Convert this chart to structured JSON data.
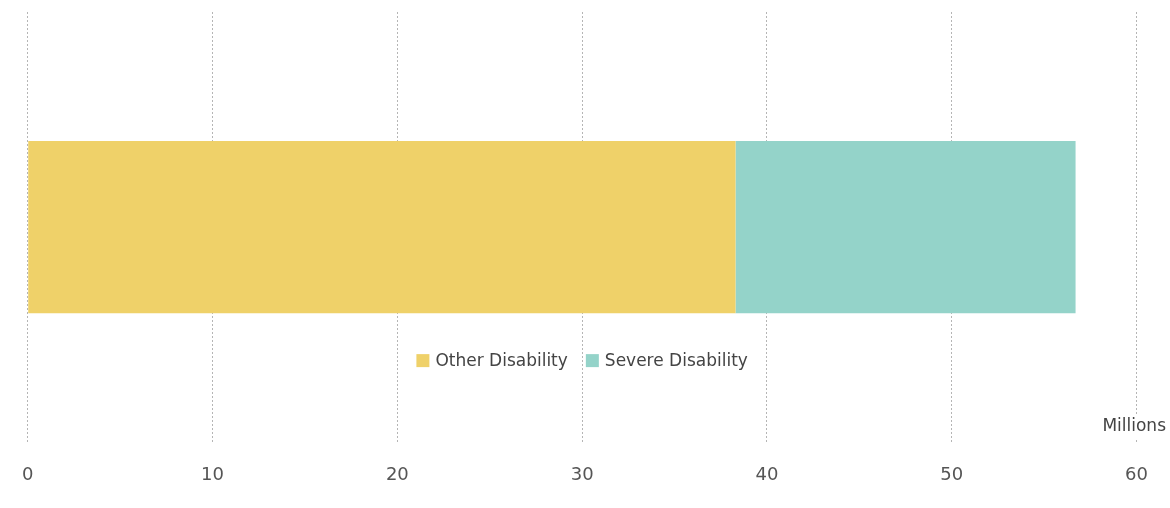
{
  "chart_data": {
    "type": "bar",
    "orientation": "horizontal",
    "stacked": true,
    "xlabel": "Millions",
    "categories": [
      null
    ],
    "series": [
      {
        "name": "Other Disability",
        "color": "#efd169",
        "values": [
          38.3
        ]
      },
      {
        "name": "Severe Disability",
        "color": "#94d3c9",
        "values": [
          18.4
        ]
      }
    ],
    "xlim": [
      0,
      60
    ],
    "xticks": [
      0,
      10,
      20,
      30,
      40,
      50,
      60
    ],
    "grid": "x",
    "legend": "bottom",
    "tick_labels": "x"
  }
}
